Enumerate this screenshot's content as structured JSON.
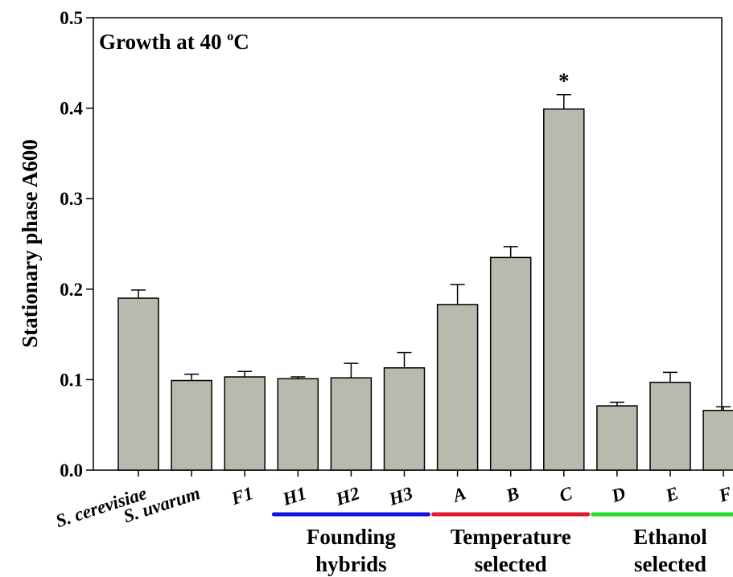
{
  "chart_data": {
    "type": "bar",
    "title": "Growth at 40 °C",
    "title_parts": {
      "main": "Growth at 40 ",
      "superscript": "o",
      "unit": "C"
    },
    "ylabel": "Stationary phase A600",
    "xlabel": "",
    "ylim": [
      0,
      0.5
    ],
    "yticks": [
      "0.0",
      "0.1",
      "0.2",
      "0.3",
      "0.4",
      "0.5"
    ],
    "ytick_values": [
      0,
      0.1,
      0.2,
      0.3,
      0.4,
      0.5
    ],
    "grid": false,
    "categories": [
      "S. cerevisiae",
      "S. uvarum",
      "F1",
      "H1",
      "H2",
      "H3",
      "A",
      "B",
      "C",
      "D",
      "E",
      "F"
    ],
    "values": [
      0.19,
      0.099,
      0.103,
      0.101,
      0.102,
      0.113,
      0.183,
      0.235,
      0.399,
      0.071,
      0.097,
      0.066
    ],
    "errors": [
      0.009,
      0.007,
      0.006,
      0.002,
      0.016,
      0.017,
      0.022,
      0.012,
      0.016,
      0.004,
      0.011,
      0.004
    ],
    "significance": [
      {
        "category": "C",
        "label": "*"
      }
    ],
    "bar_color": "#b9b9ad",
    "groups": [
      {
        "label_lines": [
          "Founding",
          "hybrids"
        ],
        "categories": [
          "H1",
          "H2",
          "H3"
        ],
        "color": "#1515dd"
      },
      {
        "label_lines": [
          "Temperature",
          "selected"
        ],
        "categories": [
          "A",
          "B",
          "C"
        ],
        "color": "#e01c2c"
      },
      {
        "label_lines": [
          "Ethanol",
          "selected"
        ],
        "categories": [
          "D",
          "E",
          "F"
        ],
        "color": "#22e022"
      }
    ]
  }
}
